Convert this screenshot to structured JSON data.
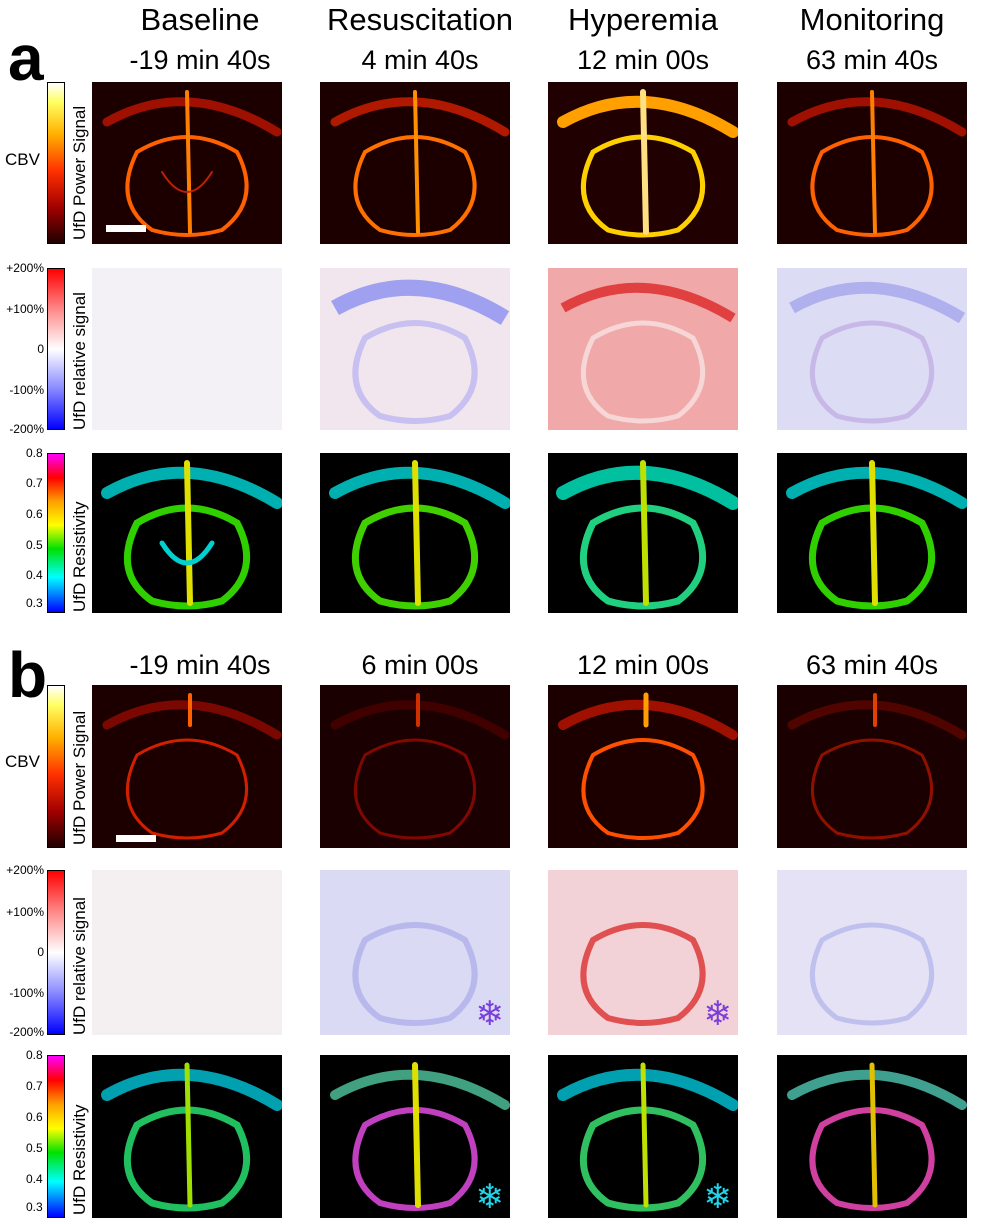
{
  "phases": [
    "Baseline",
    "Resuscitation",
    "Hyperemia",
    "Monitoring"
  ],
  "panel_a": {
    "letter": "a",
    "times": [
      "-19 min 40s",
      "4 min 40s",
      "12 min 00s",
      "63 min 40s"
    ]
  },
  "panel_b": {
    "letter": "b",
    "times": [
      "-19 min 40s",
      "6 min 00s",
      "12 min 00s",
      "63 min 40s"
    ]
  },
  "rows": {
    "cbv_label": "CBV",
    "cbv_bar_label": "UfD Power Signal",
    "rel_bar_label": "UfD relative signal",
    "rel_ticks": [
      "+200%",
      "+100%",
      "0",
      "-100%",
      "-200%"
    ],
    "res_bar_label": "UfD Resistivity",
    "res_ticks": [
      "0.8",
      "0.7",
      "0.6",
      "0.5",
      "0.4",
      "0.3"
    ]
  },
  "colors": {
    "snowflake_purple": "#7a3fd9",
    "snowflake_cyan": "#22d4ea"
  },
  "icons": [
    "snowflake-icon"
  ],
  "snowflake_glyph": "❄"
}
